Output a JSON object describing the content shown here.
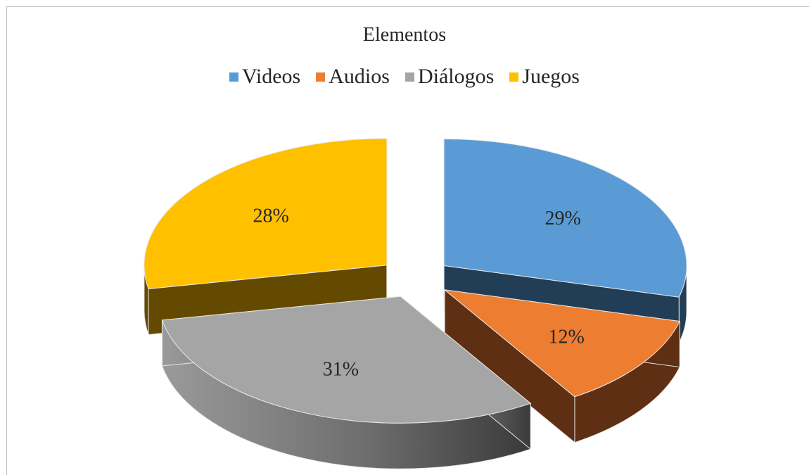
{
  "chart_data": {
    "type": "pie",
    "title": "Elementos",
    "legend_position": "top",
    "categories": [
      "Videos",
      "Audios",
      "Diálogos",
      "Juegos"
    ],
    "values": [
      29,
      12,
      31,
      28
    ],
    "data_labels": [
      "29%",
      "12%",
      "31%",
      "28%"
    ],
    "colors": [
      "#5b9bd5",
      "#ed7d31",
      "#a5a5a5",
      "#ffc000"
    ],
    "exploded": true,
    "style": "3d"
  }
}
